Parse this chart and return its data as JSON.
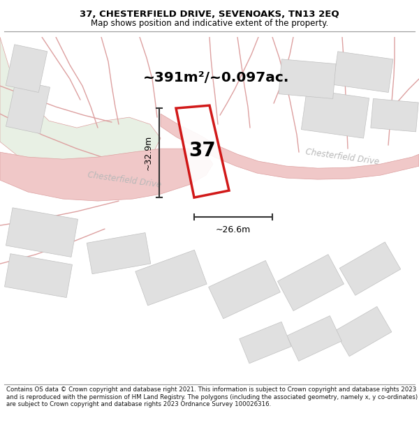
{
  "title_line1": "37, CHESTERFIELD DRIVE, SEVENOAKS, TN13 2EQ",
  "title_line2": "Map shows position and indicative extent of the property.",
  "footer_text": "Contains OS data © Crown copyright and database right 2021. This information is subject to Crown copyright and database rights 2023 and is reproduced with the permission of HM Land Registry. The polygons (including the associated geometry, namely x, y co-ordinates) are subject to Crown copyright and database rights 2023 Ordnance Survey 100026316.",
  "area_label": "~391m²/~0.097ac.",
  "width_label": "~26.6m",
  "height_label": "~32.9m",
  "plot_number": "37",
  "bg_color": "#f2f2ee",
  "green_area_color": "#e8f0e4",
  "road_color": "#f0c8c8",
  "road_border_color": "#dda0a0",
  "plot_fill": "#ececec",
  "plot_stroke": "#cc0000",
  "block_fill": "#e0e0e0",
  "road_label_color": "#b8b8b8",
  "dim_color": "#333333"
}
